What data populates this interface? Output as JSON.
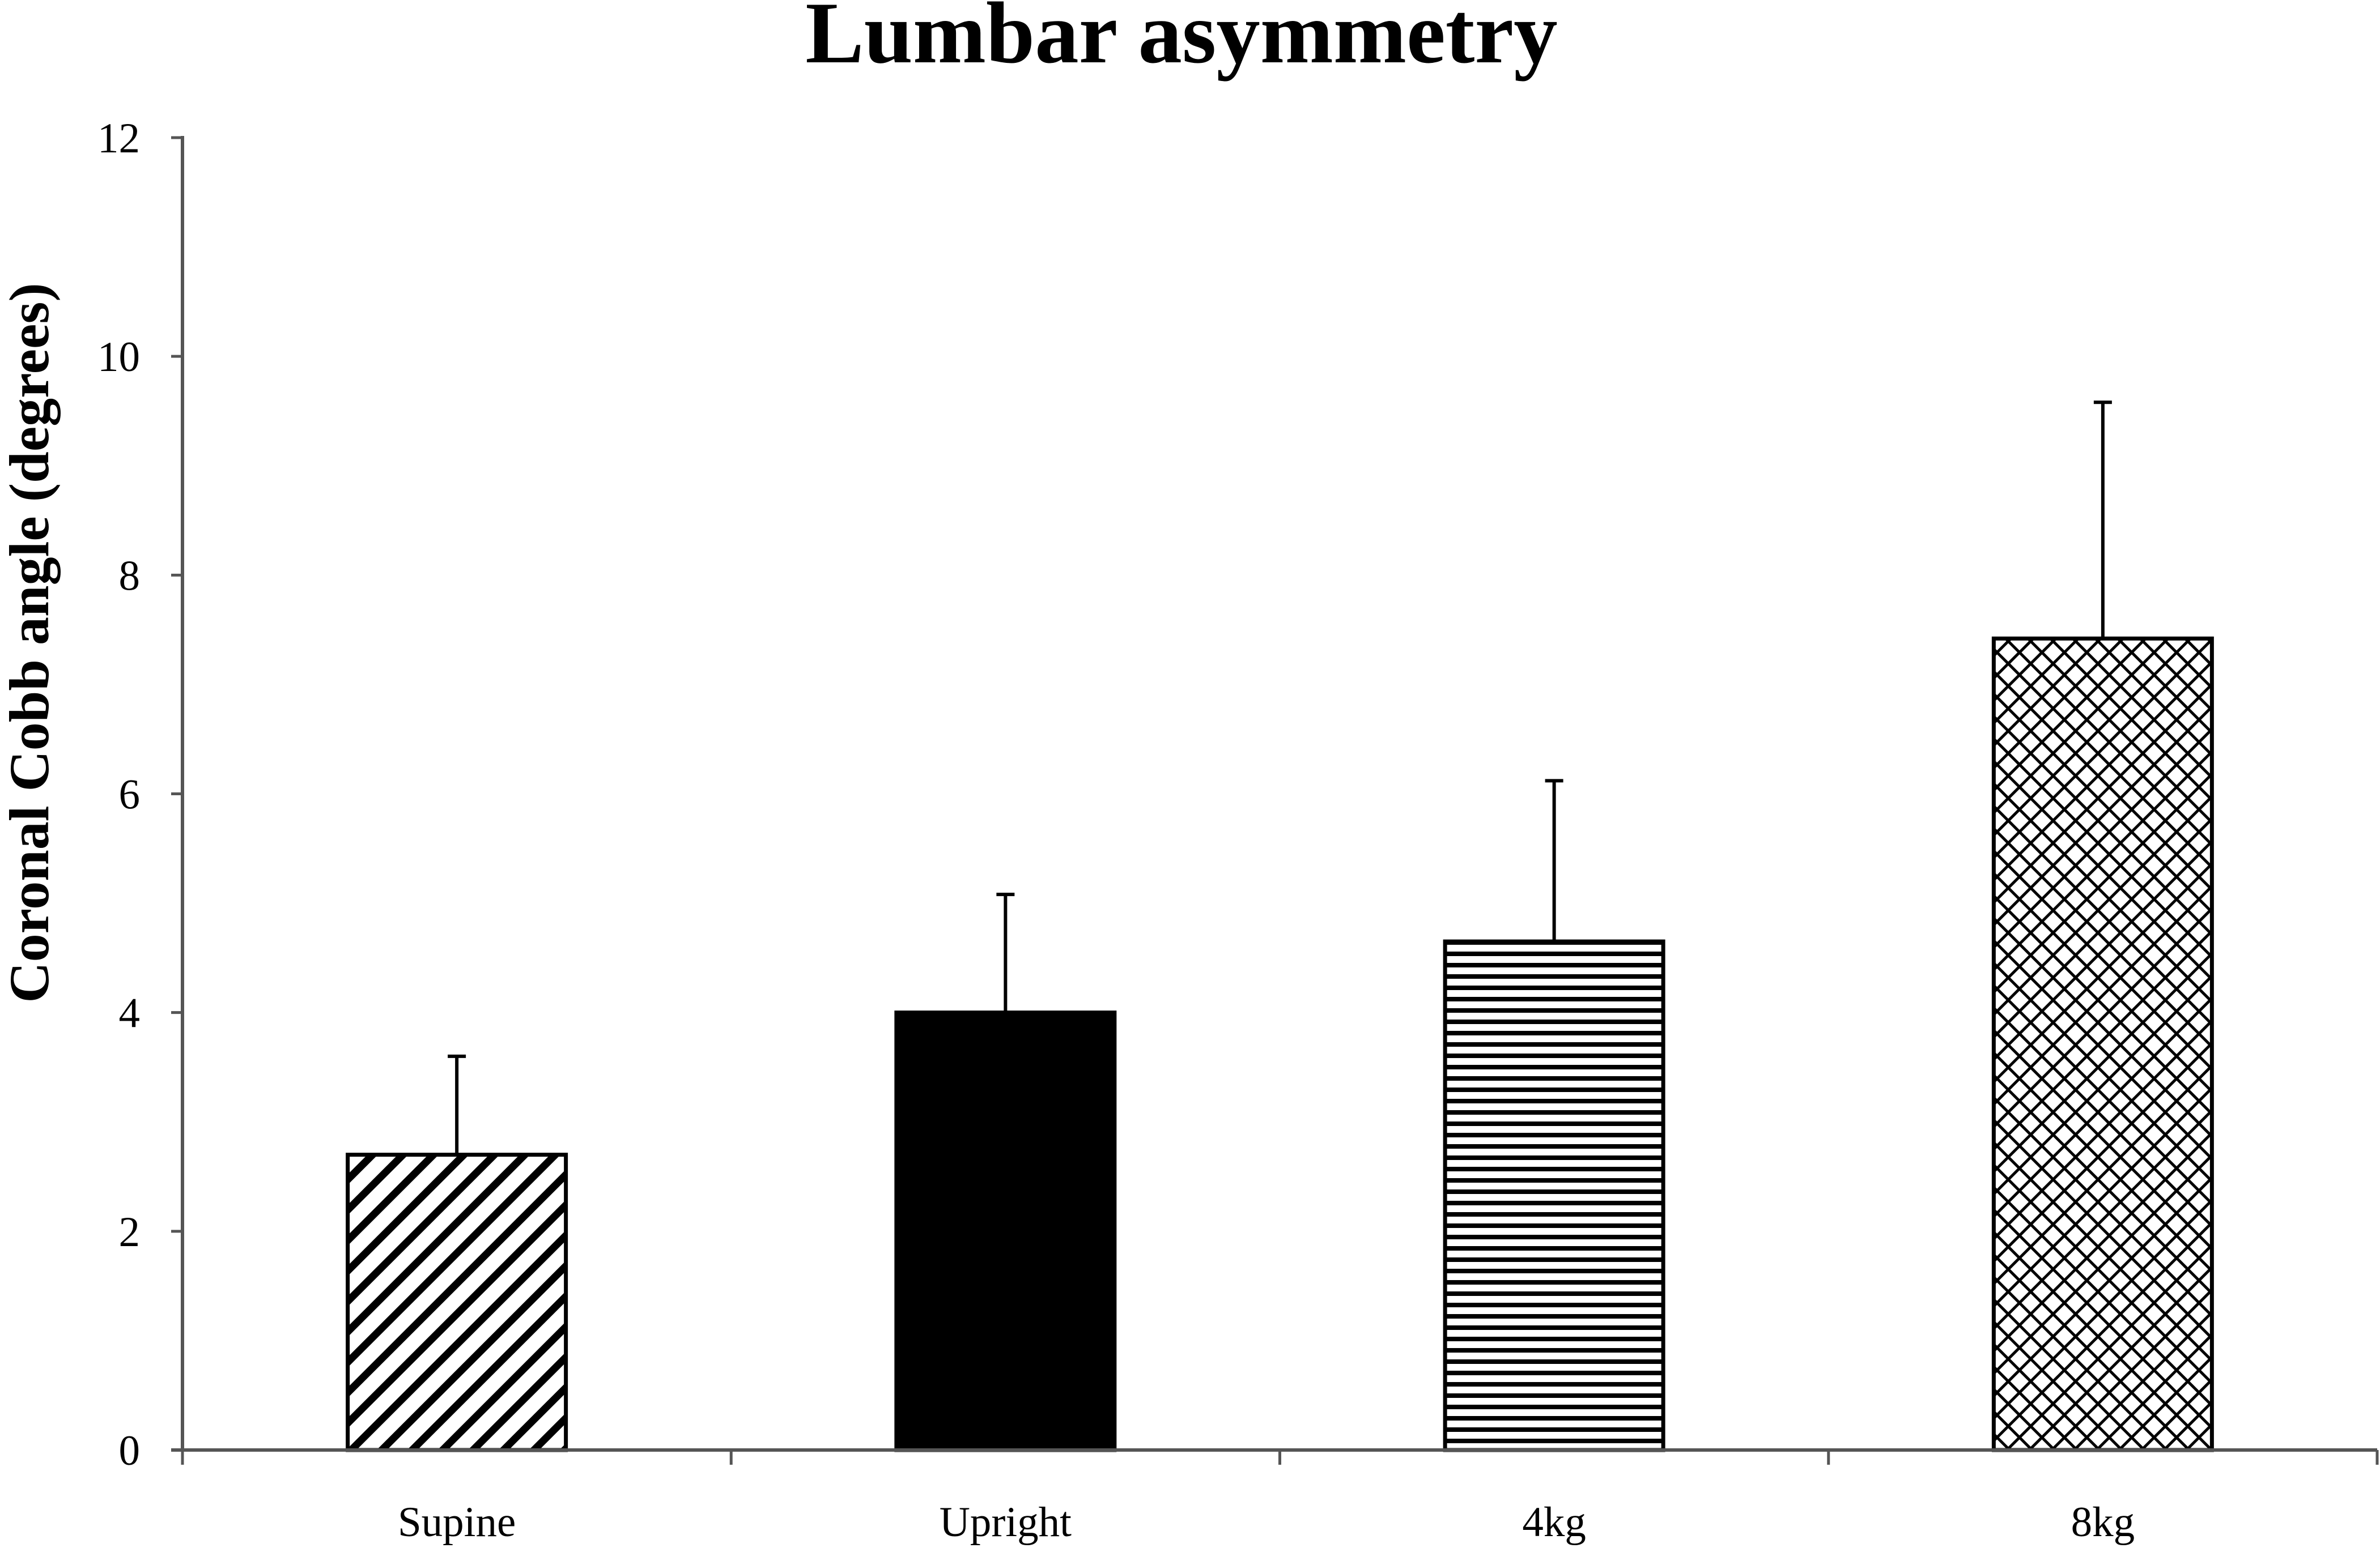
{
  "chart_data": {
    "type": "bar",
    "title": "Lumbar asymmetry",
    "xlabel": "",
    "ylabel": "Coronal Cobb angle (degrees)",
    "ylim": [
      0,
      12
    ],
    "yticks": [
      0,
      2,
      4,
      6,
      8,
      10,
      12
    ],
    "categories": [
      "Supine",
      "Upright",
      "4kg",
      "8kg"
    ],
    "values": [
      2.7,
      4.0,
      4.65,
      7.42
    ],
    "error_upper": [
      3.6,
      5.08,
      6.12,
      9.58
    ],
    "patterns": [
      "diagonal-hatch",
      "solid-black",
      "horizontal-lines",
      "crosshatch"
    ],
    "grid": false,
    "legend": "none"
  }
}
